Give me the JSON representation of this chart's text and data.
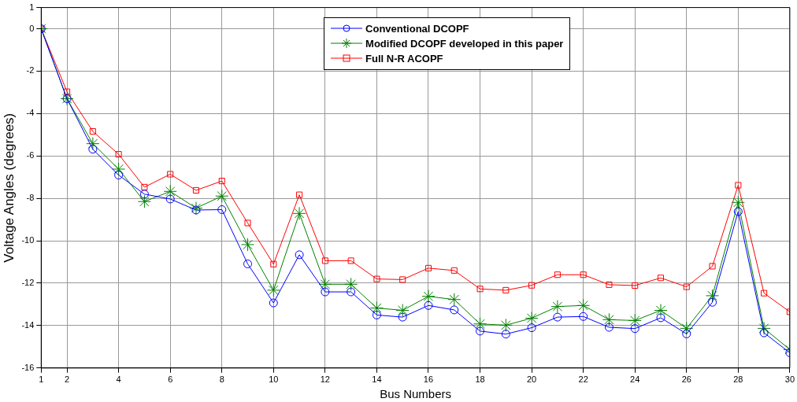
{
  "chart_data": {
    "type": "line",
    "xlabel": "Bus Numbers",
    "ylabel": "Voltage Angles (degrees)",
    "x": [
      1,
      2,
      3,
      4,
      5,
      6,
      7,
      8,
      9,
      10,
      11,
      12,
      13,
      14,
      15,
      16,
      17,
      18,
      19,
      20,
      21,
      22,
      23,
      24,
      25,
      26,
      27,
      28,
      29,
      30
    ],
    "series": [
      {
        "name": "Conventional DCOPF",
        "color": "#0000ff",
        "marker": "circle",
        "values": [
          0,
          -3.3,
          -5.68,
          -6.9,
          -7.8,
          -8.03,
          -8.55,
          -8.53,
          -11.09,
          -12.93,
          -10.66,
          -12.41,
          -12.41,
          -13.5,
          -13.6,
          -13.05,
          -13.26,
          -14.26,
          -14.4,
          -14.1,
          -13.6,
          -13.57,
          -14.08,
          -14.14,
          -13.63,
          -14.39,
          -12.9,
          -8.62,
          -14.34,
          -15.28
        ]
      },
      {
        "name": "Modified DCOPF developed in this paper",
        "color": "#008000",
        "marker": "cross",
        "values": [
          0,
          -3.3,
          -5.42,
          -6.62,
          -8.15,
          -7.67,
          -8.46,
          -7.89,
          -10.18,
          -12.33,
          -8.71,
          -12.05,
          -12.05,
          -13.17,
          -13.28,
          -12.62,
          -12.77,
          -13.92,
          -13.98,
          -13.65,
          -13.1,
          -13.05,
          -13.72,
          -13.76,
          -13.28,
          -14.13,
          -12.59,
          -8.19,
          -14.13,
          -15.13
        ]
      },
      {
        "name": "Full N-R ACOPF",
        "color": "#ff0000",
        "marker": "square",
        "values": [
          0,
          -2.97,
          -4.84,
          -5.92,
          -7.47,
          -6.86,
          -7.62,
          -7.18,
          -9.16,
          -11.1,
          -7.83,
          -10.94,
          -10.94,
          -11.8,
          -11.83,
          -11.29,
          -11.4,
          -12.27,
          -12.33,
          -12.1,
          -11.6,
          -11.6,
          -12.07,
          -12.11,
          -11.75,
          -12.17,
          -11.2,
          -7.38,
          -12.47,
          -13.35
        ]
      }
    ],
    "xlim": [
      1,
      30
    ],
    "xticks": [
      1,
      2,
      4,
      6,
      8,
      10,
      12,
      14,
      16,
      18,
      20,
      22,
      24,
      26,
      28,
      30
    ],
    "ylim": [
      -16,
      1
    ],
    "yticks": [
      -16,
      -14,
      -12,
      -10,
      -8,
      -6,
      -4,
      -2,
      0,
      1
    ],
    "grid": true,
    "legend": "top",
    "line_style": "solid"
  }
}
